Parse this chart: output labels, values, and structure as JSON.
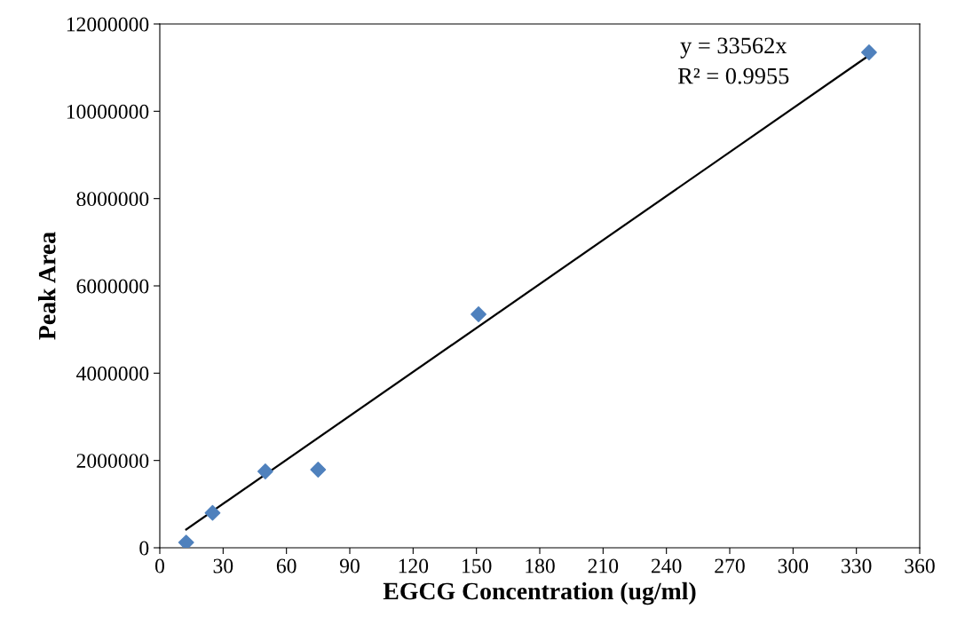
{
  "chart_data": {
    "type": "scatter",
    "xlabel": "EGCG Concentration (ug/ml)",
    "ylabel": "Peak Area",
    "series": [
      {
        "color": "#4f81bd",
        "marker": "diamond",
        "x": [
          12.5,
          25,
          50,
          75,
          151,
          336
        ],
        "values": [
          120000,
          800000,
          1750000,
          1790000,
          5350000,
          11350000
        ]
      },
      {
        "type": "line",
        "color": "#000000",
        "marker": "none",
        "line_style": "solid",
        "x": [
          12.5,
          336
        ],
        "values": [
          420000,
          11280000
        ]
      }
    ],
    "annotations": [
      "y = 33562x",
      "R² = 0.9955"
    ],
    "xlim": [
      0,
      360
    ],
    "xticks": [
      0,
      30,
      60,
      90,
      120,
      150,
      180,
      210,
      240,
      270,
      300,
      330,
      360
    ],
    "ylim": [
      0,
      12000000
    ],
    "yticks": [
      0,
      2000000,
      4000000,
      6000000,
      8000000,
      10000000,
      12000000
    ],
    "grid": false,
    "legend": false
  }
}
